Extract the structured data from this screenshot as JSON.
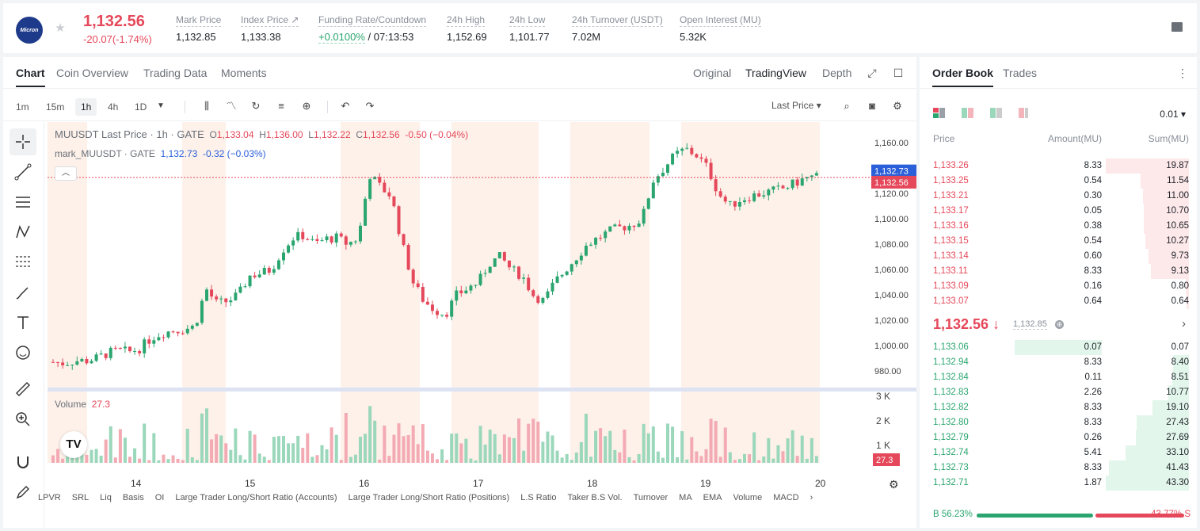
{
  "header": {
    "last_price": "1,132.56",
    "change": "-20.07(-1.74%)",
    "stats": [
      {
        "label": "Mark Price",
        "value": "1,132.85"
      },
      {
        "label": "Index Price ↗",
        "value": "1,133.38"
      },
      {
        "label": "Funding Rate/Countdown",
        "value_green": "+0.0100%",
        "value": " / 07:13:53"
      },
      {
        "label": "24h High",
        "value": "1,152.69"
      },
      {
        "label": "24h Low",
        "value": "1,101.77"
      },
      {
        "label": "24h Turnover (USDT)",
        "value": "7.02M"
      },
      {
        "label": "Open Interest (MU)",
        "value": "5.32K"
      }
    ],
    "logo_text": "Micron"
  },
  "chart_tabs": {
    "left": [
      "Chart",
      "Coin Overview",
      "Trading Data",
      "Moments"
    ],
    "right": [
      "Original",
      "TradingView",
      "Depth"
    ]
  },
  "toolbar": {
    "timeframes": [
      "1m",
      "15m",
      "1h",
      "4h",
      "1D"
    ],
    "price_type": "Last Price"
  },
  "legend": {
    "title": "MUUSDT Last Price · 1h · GATE",
    "o": "1,133.04",
    "h": "1,136.00",
    "l": "1,132.22",
    "c": "1,132.56",
    "chg": "-0.50 (−0.04%)",
    "mark_title": "mark_MUUSDT · GATE",
    "mark_val": "1,132.73",
    "mark_chg": "-0.32 (−0.03%)",
    "volume_label": "Volume",
    "volume_val": "27.3"
  },
  "bottom_indicators": [
    "LPVR",
    "SRL",
    "Liq",
    "Basis",
    "OI",
    "Large Trader Long/Short Ratio (Accounts)",
    "Large Trader Long/Short Ratio (Positions)",
    "L.S Ratio",
    "Taker B.S Vol.",
    "Turnover",
    "MA",
    "EMA",
    "Volume",
    "MACD"
  ],
  "chart_data": {
    "type": "candlestick",
    "y_ticks": [
      "1,160.00",
      "1,140.00",
      "1,120.00",
      "1,100.00",
      "1,080.00",
      "1,060.00",
      "1,040.00",
      "1,020.00",
      "1,000.00",
      "980.00"
    ],
    "ylim": [
      970,
      1170
    ],
    "vol_ticks": [
      "3 K",
      "2 K",
      "1 K"
    ],
    "x_ticks": [
      "14",
      "15",
      "16",
      "17",
      "18",
      "19",
      "20"
    ],
    "last_price_label": "1,132.56",
    "mark_price_label": "1,132.73",
    "volume_label": "27.3",
    "close_series": [
      987,
      986,
      988,
      988,
      990,
      994,
      996,
      995,
      998,
      1006,
      1010,
      1012,
      1013,
      1015,
      1045,
      1033,
      1035,
      1040,
      1055,
      1057,
      1060,
      1075,
      1085,
      1087,
      1080,
      1084,
      1085,
      1080,
      1085,
      1135,
      1125,
      1118,
      1080,
      1050,
      1035,
      1028,
      1025,
      1040,
      1045,
      1050,
      1065,
      1070,
      1060,
      1055,
      1040,
      1035,
      1050,
      1060,
      1070,
      1080,
      1085,
      1090,
      1093,
      1095,
      1100,
      1130,
      1140,
      1150,
      1155,
      1150,
      1140,
      1120,
      1110,
      1115,
      1118,
      1120,
      1122,
      1124,
      1128,
      1132,
      1133
    ]
  },
  "orderbook": {
    "tabs": [
      "Order Book",
      "Trades"
    ],
    "precision": "0.01",
    "headers": [
      "Price",
      "Amount(MU)",
      "Sum(MU)"
    ],
    "asks": [
      {
        "price": "1,133.26",
        "amount": "8.33",
        "sum": "19.87",
        "depth": 1.0
      },
      {
        "price": "1,133.25",
        "amount": "0.54",
        "sum": "11.54",
        "depth": 0.58
      },
      {
        "price": "1,133.21",
        "amount": "0.30",
        "sum": "11.00",
        "depth": 0.55
      },
      {
        "price": "1,133.17",
        "amount": "0.05",
        "sum": "10.70",
        "depth": 0.54
      },
      {
        "price": "1,133.16",
        "amount": "0.38",
        "sum": "10.65",
        "depth": 0.54
      },
      {
        "price": "1,133.15",
        "amount": "0.54",
        "sum": "10.27",
        "depth": 0.52
      },
      {
        "price": "1,133.14",
        "amount": "0.60",
        "sum": "9.73",
        "depth": 0.49
      },
      {
        "price": "1,133.11",
        "amount": "8.33",
        "sum": "9.13",
        "depth": 0.46
      },
      {
        "price": "1,133.09",
        "amount": "0.16",
        "sum": "0.80",
        "depth": 0.04
      },
      {
        "price": "1,133.07",
        "amount": "0.64",
        "sum": "0.64",
        "depth": 0.03
      }
    ],
    "mid_price": "1,132.56 ↓",
    "mid_mark": "1,132.85",
    "bids": [
      {
        "price": "1,133.06",
        "amount": "0.07",
        "sum": "0.07",
        "depth": 0.5
      },
      {
        "price": "1,132.94",
        "amount": "8.33",
        "sum": "8.40",
        "depth": 0.19
      },
      {
        "price": "1,132.84",
        "amount": "0.11",
        "sum": "8.51",
        "depth": 0.2
      },
      {
        "price": "1,132.83",
        "amount": "2.26",
        "sum": "10.77",
        "depth": 0.25
      },
      {
        "price": "1,132.82",
        "amount": "8.33",
        "sum": "19.10",
        "depth": 0.44
      },
      {
        "price": "1,132.80",
        "amount": "8.33",
        "sum": "27.43",
        "depth": 0.63
      },
      {
        "price": "1,132.79",
        "amount": "0.26",
        "sum": "27.69",
        "depth": 0.64
      },
      {
        "price": "1,132.74",
        "amount": "5.41",
        "sum": "33.10",
        "depth": 0.76
      },
      {
        "price": "1,132.73",
        "amount": "8.33",
        "sum": "41.43",
        "depth": 0.96
      },
      {
        "price": "1,132.71",
        "amount": "1.87",
        "sum": "43.30",
        "depth": 1.0
      }
    ],
    "buy_ratio": "B 56.23%",
    "sell_ratio": "43.77% S",
    "buy_fraction": 0.5623
  },
  "colors": {
    "up": "#2aa56f",
    "down": "#e5485a",
    "accent": "#2b5fd9"
  }
}
